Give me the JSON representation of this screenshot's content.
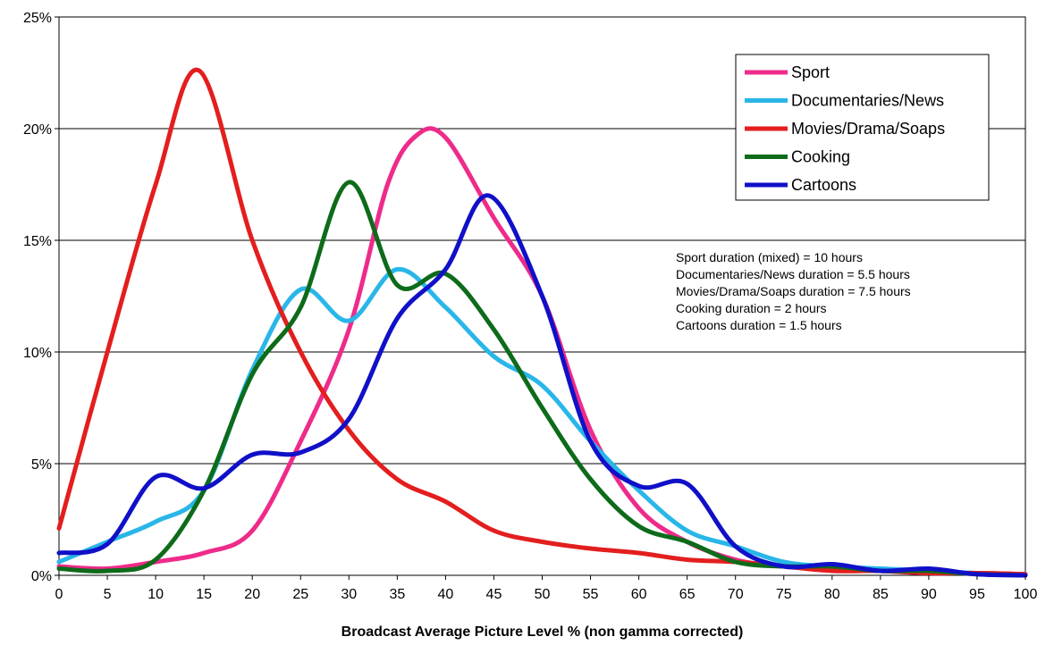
{
  "chart_data": {
    "type": "line",
    "title": "",
    "xlabel": "Broadcast Average Picture Level % (non gamma corrected)",
    "ylabel": "",
    "xlim": [
      0,
      100
    ],
    "ylim": [
      0,
      25
    ],
    "x_ticks": [
      "0",
      "5",
      "10",
      "15",
      "20",
      "25",
      "30",
      "35",
      "40",
      "45",
      "50",
      "55",
      "60",
      "65",
      "70",
      "75",
      "80",
      "85",
      "90",
      "95",
      "100"
    ],
    "y_ticks": [
      "0%",
      "5%",
      "10%",
      "15%",
      "20%",
      "25%"
    ],
    "grid": "horizontal",
    "legend_position": "top-right",
    "series": [
      {
        "name": "Sport",
        "color": "#ee2b8a",
        "points": [
          [
            0,
            0.4
          ],
          [
            5,
            0.3
          ],
          [
            10,
            0.6
          ],
          [
            15,
            1.0
          ],
          [
            20,
            2.0
          ],
          [
            25,
            6.0
          ],
          [
            30,
            11.0
          ],
          [
            34,
            17.5
          ],
          [
            37,
            19.7
          ],
          [
            40,
            19.6
          ],
          [
            45,
            16.0
          ],
          [
            50,
            12.5
          ],
          [
            55,
            6.5
          ],
          [
            60,
            3.0
          ],
          [
            65,
            1.5
          ],
          [
            70,
            0.7
          ],
          [
            75,
            0.4
          ],
          [
            80,
            0.3
          ],
          [
            85,
            0.2
          ],
          [
            90,
            0.1
          ],
          [
            95,
            0.1
          ],
          [
            100,
            0.05
          ]
        ]
      },
      {
        "name": "Documentaries/News",
        "color": "#29b6e8",
        "points": [
          [
            0,
            0.6
          ],
          [
            5,
            1.5
          ],
          [
            10,
            2.4
          ],
          [
            15,
            3.8
          ],
          [
            20,
            9.2
          ],
          [
            25,
            12.8
          ],
          [
            30,
            11.4
          ],
          [
            35,
            13.7
          ],
          [
            40,
            12.0
          ],
          [
            45,
            9.8
          ],
          [
            50,
            8.5
          ],
          [
            55,
            6.0
          ],
          [
            60,
            3.8
          ],
          [
            65,
            2.0
          ],
          [
            70,
            1.3
          ],
          [
            75,
            0.6
          ],
          [
            80,
            0.4
          ],
          [
            85,
            0.3
          ],
          [
            90,
            0.2
          ],
          [
            95,
            0.1
          ],
          [
            100,
            0.05
          ]
        ]
      },
      {
        "name": "Movies/Drama/Soaps",
        "color": "#e31e1e",
        "points": [
          [
            0,
            2.1
          ],
          [
            5,
            10.0
          ],
          [
            10,
            17.5
          ],
          [
            14.5,
            22.6
          ],
          [
            20,
            15.0
          ],
          [
            25,
            10.0
          ],
          [
            30,
            6.5
          ],
          [
            35,
            4.3
          ],
          [
            40,
            3.3
          ],
          [
            45,
            2.0
          ],
          [
            50,
            1.5
          ],
          [
            55,
            1.2
          ],
          [
            60,
            1.0
          ],
          [
            65,
            0.7
          ],
          [
            70,
            0.6
          ],
          [
            75,
            0.4
          ],
          [
            80,
            0.2
          ],
          [
            85,
            0.2
          ],
          [
            90,
            0.1
          ],
          [
            95,
            0.1
          ],
          [
            100,
            0.05
          ]
        ]
      },
      {
        "name": "Cooking",
        "color": "#0d6b1a",
        "points": [
          [
            0,
            0.3
          ],
          [
            5,
            0.2
          ],
          [
            10,
            0.7
          ],
          [
            15,
            3.8
          ],
          [
            20,
            9.0
          ],
          [
            25,
            12.0
          ],
          [
            30,
            17.6
          ],
          [
            35,
            13.0
          ],
          [
            40,
            13.5
          ],
          [
            45,
            11.0
          ],
          [
            50,
            7.5
          ],
          [
            55,
            4.3
          ],
          [
            60,
            2.2
          ],
          [
            65,
            1.5
          ],
          [
            70,
            0.6
          ],
          [
            75,
            0.4
          ],
          [
            80,
            0.4
          ],
          [
            85,
            0.2
          ],
          [
            90,
            0.2
          ],
          [
            95,
            0.05
          ],
          [
            100,
            0.0
          ]
        ]
      },
      {
        "name": "Cartoons",
        "color": "#1010c8",
        "points": [
          [
            0,
            1.0
          ],
          [
            5,
            1.4
          ],
          [
            10,
            4.4
          ],
          [
            15,
            3.9
          ],
          [
            20,
            5.4
          ],
          [
            25,
            5.5
          ],
          [
            30,
            7.0
          ],
          [
            35,
            11.5
          ],
          [
            40,
            13.7
          ],
          [
            44.5,
            17.0
          ],
          [
            50,
            12.5
          ],
          [
            55,
            6.0
          ],
          [
            60,
            4.0
          ],
          [
            65,
            4.1
          ],
          [
            70,
            1.3
          ],
          [
            75,
            0.4
          ],
          [
            80,
            0.5
          ],
          [
            85,
            0.2
          ],
          [
            90,
            0.3
          ],
          [
            95,
            0.05
          ],
          [
            100,
            0.0
          ]
        ]
      }
    ],
    "annotations": [
      "Sport duration (mixed) = 10 hours",
      "Documentaries/News duration = 5.5 hours",
      "Movies/Drama/Soaps duration = 7.5 hours",
      "Cooking duration = 2 hours",
      "Cartoons duration = 1.5 hours"
    ]
  }
}
